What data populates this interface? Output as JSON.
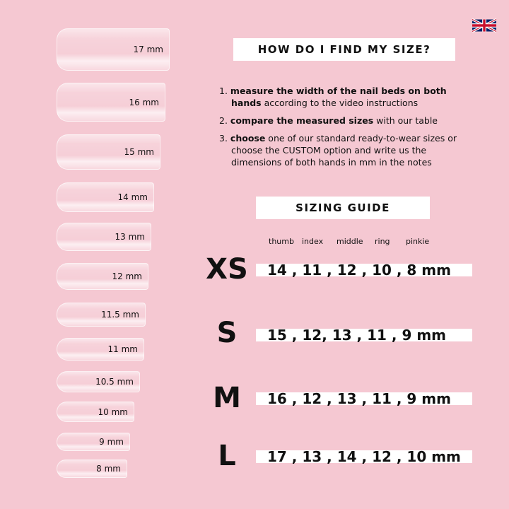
{
  "nails": [
    {
      "label": "17 mm"
    },
    {
      "label": "16 mm"
    },
    {
      "label": "15 mm"
    },
    {
      "label": "14 mm"
    },
    {
      "label": "13 mm"
    },
    {
      "label": "12 mm"
    },
    {
      "label": "11.5 mm"
    },
    {
      "label": "11 mm"
    },
    {
      "label": "10.5 mm"
    },
    {
      "label": "10 mm"
    },
    {
      "label": "9 mm"
    },
    {
      "label": "8 mm"
    }
  ],
  "flag_icon": "uk-flag-icon",
  "find_title": "HOW DO I FIND MY SIZE?",
  "steps": [
    {
      "num": "1.",
      "bold": "measure the width of the nail beds on both hands",
      "text": " according to the video instructions"
    },
    {
      "num": "2.",
      "bold": "compare the measured sizes",
      "text": " with our table"
    },
    {
      "num": "3.",
      "bold": "choose",
      "text": " one of our standard ready-to-wear sizes or choose the CUSTOM option and write us the dimensions of both hands in mm in the notes"
    }
  ],
  "guide_title": "SIZING GUIDE",
  "columns": [
    "thumb",
    "index",
    "middle",
    "ring",
    "pinkie"
  ],
  "sizes": [
    {
      "size": "XS",
      "values": "14 , 11 , 12 , 10 , 8 mm"
    },
    {
      "size": "S",
      "values": "15 , 12, 13 , 11 , 9 mm"
    },
    {
      "size": "M",
      "values": "16 , 12 , 13 , 11 , 9 mm"
    },
    {
      "size": "L",
      "values": "17 , 13 , 14 , 12 , 10 mm"
    }
  ]
}
